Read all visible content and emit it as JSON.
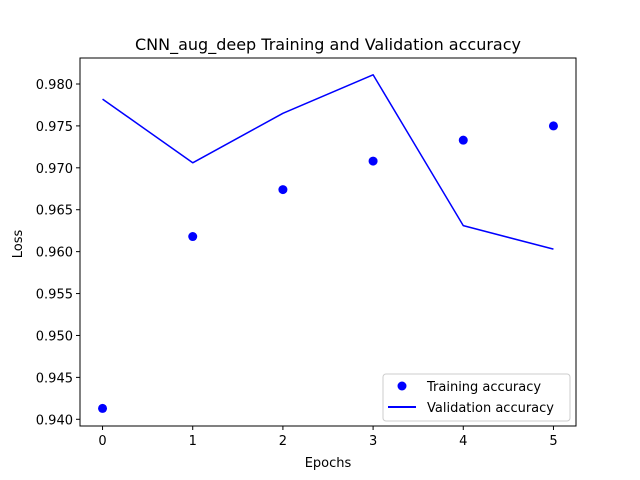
{
  "chart_data": {
    "type": "line",
    "title": "CNN_aug_deep Training and Validation accuracy",
    "xlabel": "Epochs",
    "ylabel": "Loss",
    "x": [
      0,
      1,
      2,
      3,
      4,
      5
    ],
    "xlim": [
      -0.25,
      5.25
    ],
    "ylim": [
      0.9392,
      0.9831
    ],
    "xticks": [
      0,
      1,
      2,
      3,
      4,
      5
    ],
    "yticks": [
      0.94,
      0.945,
      0.95,
      0.955,
      0.96,
      0.965,
      0.97,
      0.975,
      0.98
    ],
    "ytick_labels": [
      "0.940",
      "0.945",
      "0.950",
      "0.955",
      "0.960",
      "0.965",
      "0.970",
      "0.975",
      "0.980"
    ],
    "grid": false,
    "legend_position": "lower right",
    "series": [
      {
        "name": "Training accuracy",
        "style": "markers",
        "color": "#0000ff",
        "values": [
          0.9413,
          0.9618,
          0.9674,
          0.9708,
          0.9733,
          0.975
        ]
      },
      {
        "name": "Validation accuracy",
        "style": "line",
        "color": "#0000ff",
        "values": [
          0.9782,
          0.9706,
          0.9765,
          0.9811,
          0.9631,
          0.9603
        ]
      }
    ]
  }
}
